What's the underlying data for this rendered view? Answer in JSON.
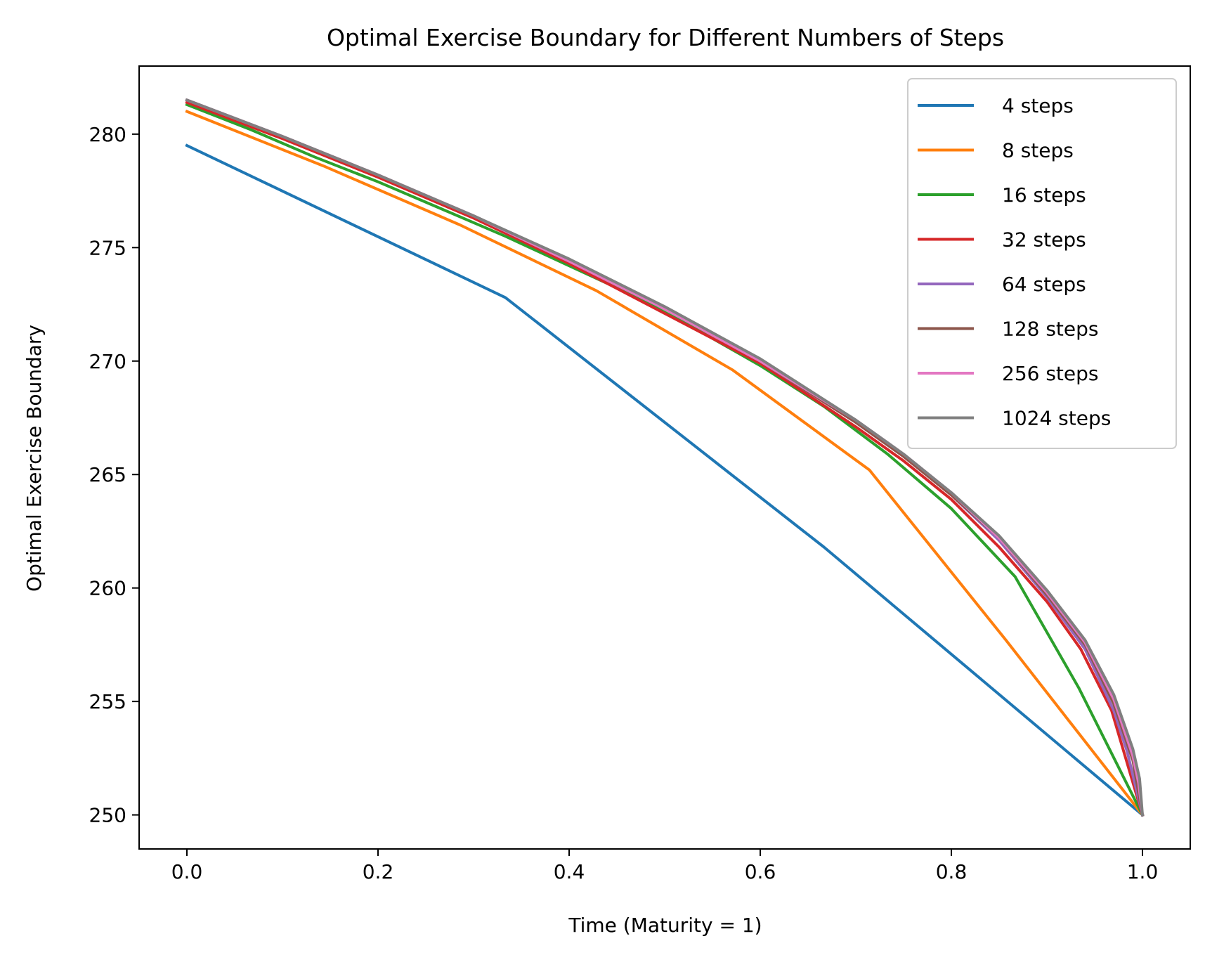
{
  "chart_data": {
    "type": "line",
    "title": "Optimal Exercise Boundary for Different Numbers of Steps",
    "xlabel": "Time (Maturity = 1)",
    "ylabel": "Optimal Exercise Boundary",
    "xlim": [
      -0.05,
      1.05
    ],
    "ylim": [
      248.5,
      283.0
    ],
    "x_ticks": [
      0.0,
      0.2,
      0.4,
      0.6,
      0.8,
      1.0
    ],
    "x_tick_labels": [
      "0.0",
      "0.2",
      "0.4",
      "0.6",
      "0.8",
      "1.0"
    ],
    "y_ticks": [
      250,
      255,
      260,
      265,
      270,
      275,
      280
    ],
    "y_tick_labels": [
      "250",
      "255",
      "260",
      "265",
      "270",
      "275",
      "280"
    ],
    "grid": false,
    "legend_position": "top-right",
    "series": [
      {
        "name": "4 steps",
        "color": "#1f77b4",
        "x": [
          0.0,
          0.3333,
          0.6667,
          1.0
        ],
        "y": [
          279.5,
          272.8,
          261.8,
          250.0
        ]
      },
      {
        "name": "8 steps",
        "color": "#ff7f0e",
        "x": [
          0.0,
          0.1429,
          0.2857,
          0.4286,
          0.5714,
          0.7143,
          0.8571,
          1.0
        ],
        "y": [
          281.0,
          278.6,
          276.0,
          273.1,
          269.6,
          265.2,
          257.7,
          250.0
        ]
      },
      {
        "name": "16 steps",
        "color": "#2ca02c",
        "x": [
          0.0,
          0.0667,
          0.1333,
          0.2,
          0.2667,
          0.3333,
          0.4,
          0.4667,
          0.5333,
          0.6,
          0.6667,
          0.7333,
          0.8,
          0.8667,
          0.9333,
          1.0
        ],
        "y": [
          281.3,
          280.2,
          279.0,
          277.9,
          276.7,
          275.5,
          274.2,
          272.9,
          271.4,
          269.8,
          268.0,
          265.9,
          263.5,
          260.5,
          255.6,
          250.0
        ]
      },
      {
        "name": "32 steps",
        "color": "#d62728",
        "x": [
          0.0,
          0.1,
          0.2,
          0.3,
          0.4,
          0.5,
          0.6,
          0.7,
          0.75,
          0.8,
          0.85,
          0.9,
          0.9355,
          0.9677,
          1.0
        ],
        "y": [
          281.4,
          279.8,
          278.1,
          276.3,
          274.3,
          272.1,
          269.9,
          267.1,
          265.6,
          263.9,
          261.8,
          259.4,
          257.3,
          254.6,
          250.0
        ]
      },
      {
        "name": "64 steps",
        "color": "#9467bd",
        "x": [
          0.0,
          0.1,
          0.2,
          0.3,
          0.4,
          0.5,
          0.6,
          0.7,
          0.75,
          0.8,
          0.85,
          0.9,
          0.94,
          0.97,
          0.984,
          1.0
        ],
        "y": [
          281.5,
          279.9,
          278.2,
          276.4,
          274.4,
          272.3,
          270.0,
          267.3,
          265.8,
          264.1,
          262.1,
          259.6,
          257.3,
          254.6,
          252.8,
          250.0
        ]
      },
      {
        "name": "128 steps",
        "color": "#8c564b",
        "x": [
          0.0,
          0.1,
          0.2,
          0.3,
          0.4,
          0.5,
          0.6,
          0.7,
          0.75,
          0.8,
          0.85,
          0.9,
          0.94,
          0.97,
          0.99,
          1.0
        ],
        "y": [
          281.5,
          279.9,
          278.2,
          276.4,
          274.4,
          272.3,
          270.0,
          267.3,
          265.8,
          264.1,
          262.2,
          259.7,
          257.5,
          254.9,
          252.4,
          250.0
        ]
      },
      {
        "name": "256 steps",
        "color": "#e377c2",
        "x": [
          0.0,
          0.1,
          0.2,
          0.3,
          0.4,
          0.5,
          0.6,
          0.7,
          0.75,
          0.8,
          0.85,
          0.9,
          0.94,
          0.97,
          0.99,
          0.996,
          1.0
        ],
        "y": [
          281.5,
          279.9,
          278.2,
          276.4,
          274.4,
          272.3,
          270.0,
          267.4,
          265.9,
          264.2,
          262.2,
          259.8,
          257.6,
          255.1,
          252.6,
          251.4,
          250.0
        ]
      },
      {
        "name": "1024 steps",
        "color": "#7f7f7f",
        "x": [
          0.0,
          0.1,
          0.2,
          0.3,
          0.4,
          0.5,
          0.6,
          0.7,
          0.75,
          0.8,
          0.85,
          0.9,
          0.94,
          0.97,
          0.99,
          0.997,
          1.0
        ],
        "y": [
          281.5,
          279.9,
          278.2,
          276.4,
          274.5,
          272.4,
          270.1,
          267.4,
          265.9,
          264.2,
          262.3,
          259.9,
          257.7,
          255.3,
          252.9,
          251.6,
          250.0
        ]
      }
    ]
  }
}
